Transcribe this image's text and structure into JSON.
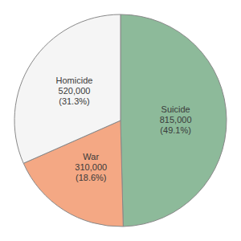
{
  "chart_data": {
    "type": "pie",
    "labels": [
      "Suicide\n815,000\n(49.1%)",
      "War\n310,000\n(18.6%)",
      "Homicide\n520,000\n(31.3%)"
    ],
    "values": [
      49.1,
      18.6,
      31.3
    ],
    "colors": [
      "#8dba9a",
      "#f4a884",
      "#f5f5f5"
    ]
  }
}
